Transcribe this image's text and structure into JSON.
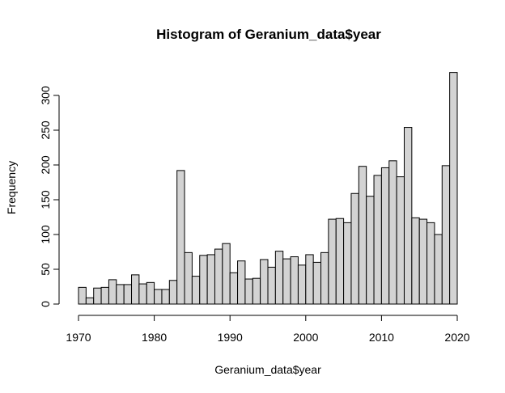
{
  "chart_data": {
    "type": "bar",
    "title": "Histogram of Geranium_data$year",
    "xlabel": "Geranium_data$year",
    "ylabel": "Frequency",
    "xlim": [
      1970,
      2020
    ],
    "ylim": [
      0,
      330
    ],
    "bin_width": 1,
    "x_ticks": [
      1970,
      1980,
      1990,
      2000,
      2010,
      2020
    ],
    "y_ticks": [
      0,
      50,
      100,
      150,
      200,
      250,
      300
    ],
    "bins_start": [
      1970,
      1971,
      1972,
      1973,
      1974,
      1975,
      1976,
      1977,
      1978,
      1979,
      1980,
      1981,
      1982,
      1983,
      1984,
      1985,
      1986,
      1987,
      1988,
      1989,
      1990,
      1991,
      1992,
      1993,
      1994,
      1995,
      1996,
      1997,
      1998,
      1999,
      2000,
      2001,
      2002,
      2003,
      2004,
      2005,
      2006,
      2007,
      2008,
      2009,
      2010,
      2011,
      2012,
      2013,
      2014,
      2015,
      2016,
      2017,
      2018,
      2019
    ],
    "values": [
      24,
      9,
      23,
      24,
      35,
      28,
      28,
      42,
      29,
      31,
      21,
      21,
      34,
      192,
      74,
      40,
      70,
      71,
      79,
      87,
      45,
      62,
      36,
      37,
      64,
      53,
      76,
      65,
      68,
      56,
      71,
      60,
      74,
      122,
      123,
      117,
      159,
      198,
      155,
      185,
      196,
      206,
      183,
      254,
      124,
      122,
      117,
      100,
      199,
      333
    ]
  }
}
